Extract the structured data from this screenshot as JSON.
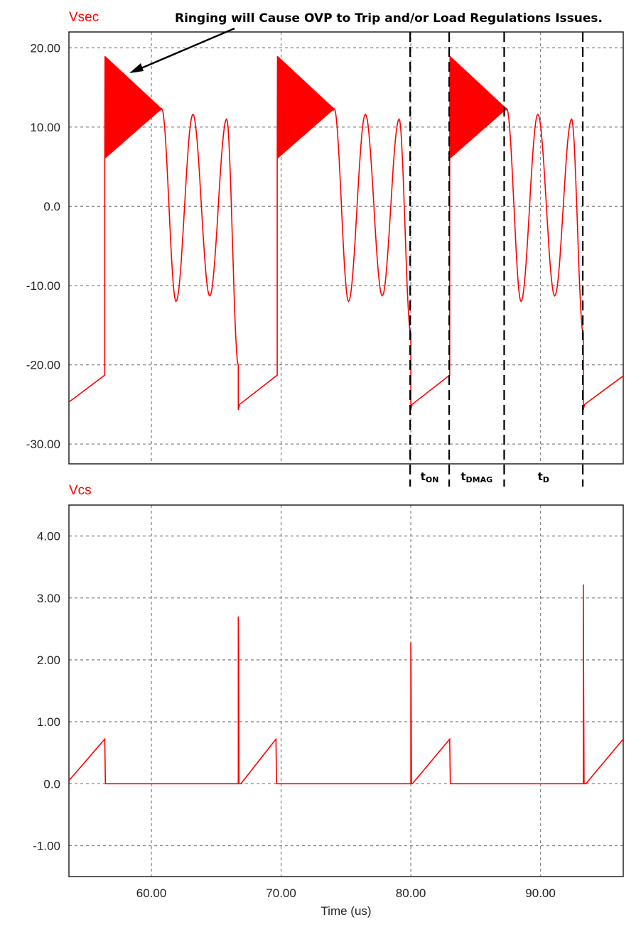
{
  "chart_data": [
    {
      "type": "line",
      "title": "Vsec",
      "xlim": [
        53.64,
        96.38
      ],
      "ylim": [
        -32.5,
        22.0
      ],
      "xticks": [
        60,
        70,
        80,
        90
      ],
      "yticks": [
        20,
        10,
        0,
        -10,
        -20,
        -30
      ],
      "ytick_labels": [
        "20.00",
        "10.00",
        "0.0",
        "-10.00",
        "-20.00",
        "-30.00"
      ],
      "grid": true,
      "color": "#ff0000",
      "segments": [
        {
          "kind": "linear",
          "points": [
            [
              53.64,
              -24.7
            ],
            [
              56.4,
              -21.3
            ],
            [
              56.4,
              6
            ]
          ]
        },
        {
          "kind": "ringing",
          "t": [
            56.4,
            60.8
          ],
          "upper": [
            19.0,
            12.3
          ],
          "lower": [
            6.0,
            12.3
          ]
        },
        {
          "kind": "cosine",
          "points": [
            [
              60.8,
              12.3
            ],
            [
              61.9,
              -12.0
            ],
            [
              63.2,
              11.6
            ],
            [
              64.5,
              -11.3
            ],
            [
              65.8,
              11.0
            ],
            [
              66.7,
              -20.0
            ]
          ]
        },
        {
          "kind": "linear",
          "points": [
            [
              66.7,
              -20.0
            ],
            [
              66.7,
              -25.7
            ],
            [
              66.8,
              -25.0
            ],
            [
              69.7,
              -21.3
            ],
            [
              69.7,
              6
            ]
          ]
        },
        {
          "kind": "ringing",
          "t": [
            69.7,
            74.1
          ],
          "upper": [
            19.0,
            12.3
          ],
          "lower": [
            6.0,
            12.3
          ]
        },
        {
          "kind": "cosine",
          "points": [
            [
              74.1,
              12.3
            ],
            [
              75.2,
              -12.0
            ],
            [
              76.5,
              11.6
            ],
            [
              77.8,
              -11.3
            ],
            [
              79.1,
              11.0
            ],
            [
              80.0,
              -16.0
            ]
          ]
        },
        {
          "kind": "linear",
          "points": [
            [
              80.0,
              -16.0
            ],
            [
              80.0,
              -25.7
            ],
            [
              80.1,
              -25.0
            ],
            [
              83.0,
              -21.3
            ],
            [
              83.0,
              6
            ]
          ]
        },
        {
          "kind": "ringing",
          "t": [
            83.0,
            87.4
          ],
          "upper": [
            19.0,
            12.3
          ],
          "lower": [
            6.0,
            12.3
          ]
        },
        {
          "kind": "cosine",
          "points": [
            [
              87.4,
              12.3
            ],
            [
              88.5,
              -12.0
            ],
            [
              89.8,
              11.6
            ],
            [
              91.1,
              -11.3
            ],
            [
              92.4,
              11.0
            ],
            [
              93.3,
              -16.0
            ]
          ]
        },
        {
          "kind": "linear",
          "points": [
            [
              93.3,
              -16.0
            ],
            [
              93.3,
              -25.7
            ],
            [
              93.4,
              -25.0
            ],
            [
              96.38,
              -21.4
            ]
          ]
        }
      ],
      "annotation": "Ringing will Cause OVP to Trip and/or Load Regulations Issues.",
      "annotation_target": [
        58.3,
        16.8
      ],
      "interval_markers": [
        79.95,
        82.96,
        87.2,
        93.26
      ],
      "interval_labels": [
        {
          "main": "t",
          "sub": "ON"
        },
        {
          "main": "t",
          "sub": "DMAG"
        },
        {
          "main": "t",
          "sub": "D"
        }
      ]
    },
    {
      "type": "line",
      "title": "Vcs",
      "xlim": [
        53.64,
        96.38
      ],
      "ylim": [
        -1.5,
        4.5
      ],
      "xticks": [
        60,
        70,
        80,
        90
      ],
      "xtick_labels": [
        "60.00",
        "70.00",
        "80.00",
        "90.00"
      ],
      "yticks": [
        4,
        3,
        2,
        1,
        0,
        -1
      ],
      "ytick_labels": [
        "4.00",
        "3.00",
        "2.00",
        "1.00",
        "0.0",
        "-1.00"
      ],
      "xlabel": "Time (us)",
      "grid": true,
      "color": "#ff0000",
      "points": [
        [
          53.64,
          0.05
        ],
        [
          56.4,
          0.72
        ],
        [
          56.45,
          0
        ],
        [
          66.7,
          0
        ],
        [
          66.7,
          2.7
        ],
        [
          66.72,
          2.15
        ],
        [
          66.75,
          0
        ],
        [
          66.9,
          0
        ],
        [
          69.6,
          0.72
        ],
        [
          69.65,
          0
        ],
        [
          80.0,
          0
        ],
        [
          80.0,
          2.28
        ],
        [
          80.02,
          1.8
        ],
        [
          80.05,
          0
        ],
        [
          80.12,
          0
        ],
        [
          83.0,
          0.72
        ],
        [
          83.05,
          0
        ],
        [
          93.3,
          0
        ],
        [
          93.3,
          3.22
        ],
        [
          93.33,
          1.55
        ],
        [
          93.36,
          0
        ],
        [
          93.5,
          0
        ],
        [
          96.38,
          0.72
        ]
      ]
    }
  ]
}
